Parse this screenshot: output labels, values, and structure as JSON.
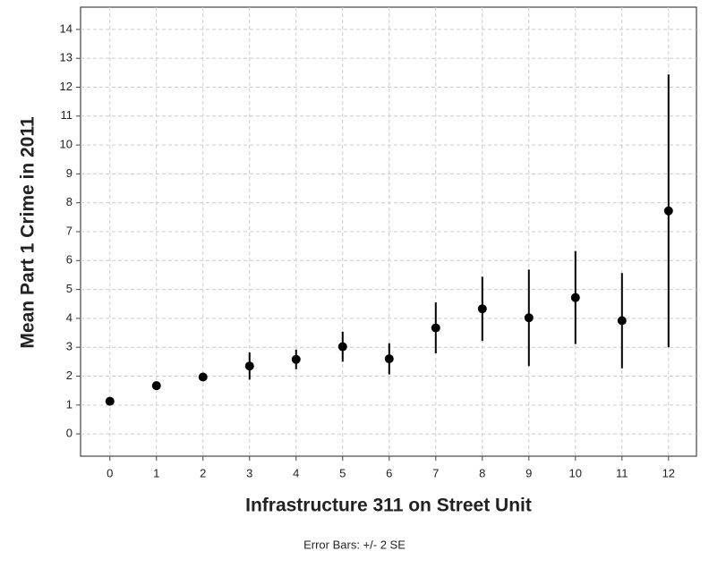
{
  "chart_data": {
    "type": "scatter",
    "x_label": "Infrastructure 311 on Street Unit",
    "y_label": "Mean Part 1 Crime in 2011",
    "note": "Error Bars: +/- 2 SE",
    "x": [
      0,
      1,
      2,
      3,
      4,
      5,
      6,
      7,
      8,
      9,
      10,
      11,
      12
    ],
    "values": [
      1.13,
      1.67,
      1.97,
      2.35,
      2.58,
      3.02,
      2.6,
      3.67,
      4.33,
      4.02,
      4.72,
      3.92,
      7.72
    ],
    "errors": [
      0.05,
      0.05,
      0.12,
      0.47,
      0.34,
      0.52,
      0.54,
      0.88,
      1.11,
      1.67,
      1.61,
      1.65,
      4.72
    ],
    "color": "#000000",
    "xlim": [
      -0.63,
      12.6
    ],
    "ylim": [
      -0.77,
      14.77
    ],
    "xticks": [
      0,
      1,
      2,
      3,
      4,
      5,
      6,
      7,
      8,
      9,
      10,
      11,
      12
    ],
    "yticks": [
      0,
      1,
      2,
      3,
      4,
      5,
      6,
      7,
      8,
      9,
      10,
      11,
      12,
      13,
      14
    ],
    "grid": true
  }
}
